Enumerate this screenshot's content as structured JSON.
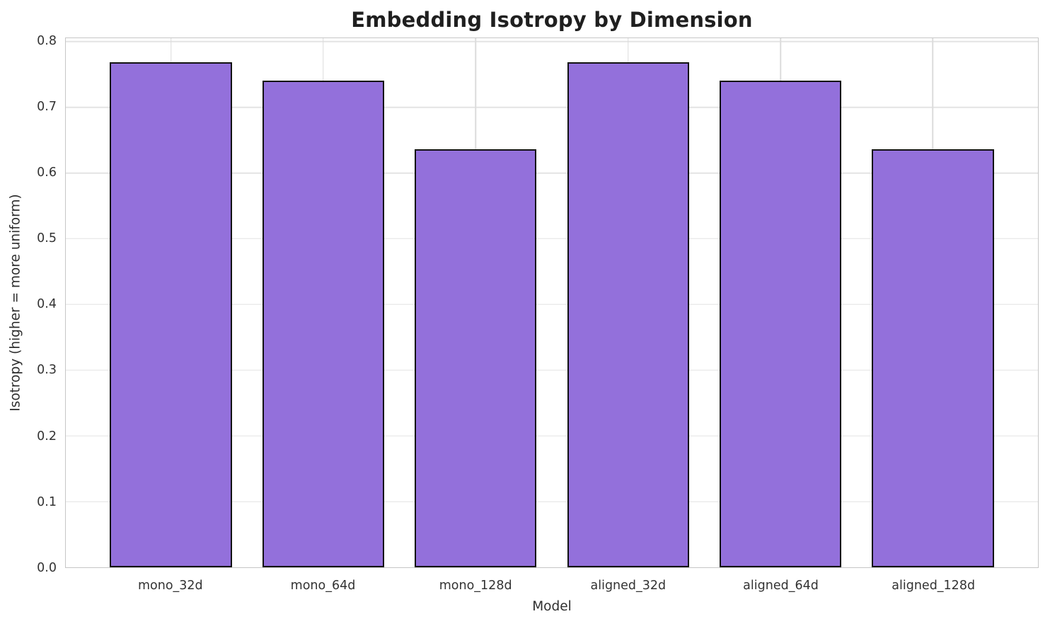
{
  "chart_data": {
    "type": "bar",
    "title": "Embedding Isotropy by Dimension",
    "xlabel": "Model",
    "ylabel": "Isotropy (higher = more uniform)",
    "categories": [
      "mono_32d",
      "mono_64d",
      "mono_128d",
      "aligned_32d",
      "aligned_64d",
      "aligned_128d"
    ],
    "values": [
      0.768,
      0.74,
      0.636,
      0.768,
      0.74,
      0.636
    ],
    "ylim": [
      0.0,
      0.8
    ],
    "ytick_step": 0.1,
    "ytick_labels": [
      "0.0",
      "0.1",
      "0.2",
      "0.3",
      "0.4",
      "0.5",
      "0.6",
      "0.7",
      "0.8"
    ],
    "grid": "both",
    "legend_position": "none",
    "bar_fill": "#9370DB",
    "bar_edge": "#111111",
    "grid_color": "#e4e4e4",
    "spine_color": "#c6c6c6"
  }
}
